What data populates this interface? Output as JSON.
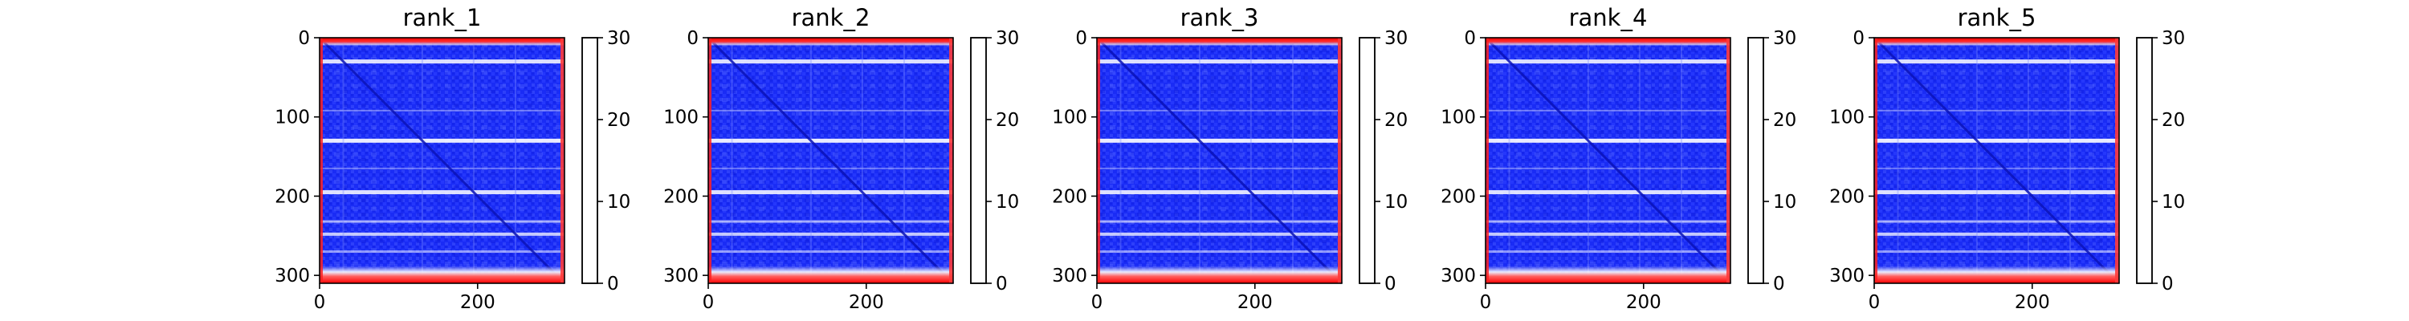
{
  "chart_data": [
    {
      "type": "heatmap",
      "title": "rank_1",
      "xlim": [
        0,
        310
      ],
      "ylim": [
        310,
        0
      ],
      "x_ticks": [
        0,
        200
      ],
      "x_tick_labels": [
        "0",
        "200"
      ],
      "y_ticks": [
        0,
        100,
        200,
        300
      ],
      "y_tick_labels": [
        "0",
        "100",
        "200",
        "300"
      ],
      "colorbar": {
        "range": [
          0,
          30
        ],
        "ticks": [
          0,
          10,
          20,
          30
        ],
        "tick_labels": [
          "0",
          "10",
          "20",
          "30"
        ],
        "colormap": [
          "#0000ff",
          "#ffffff",
          "#ff0000"
        ]
      },
      "matrix_size": 310,
      "grid": false
    },
    {
      "type": "heatmap",
      "title": "rank_2",
      "xlim": [
        0,
        310
      ],
      "ylim": [
        310,
        0
      ],
      "x_ticks": [
        0,
        200
      ],
      "x_tick_labels": [
        "0",
        "200"
      ],
      "y_ticks": [
        0,
        100,
        200,
        300
      ],
      "y_tick_labels": [
        "0",
        "100",
        "200",
        "300"
      ],
      "colorbar": {
        "range": [
          0,
          30
        ],
        "ticks": [
          0,
          10,
          20,
          30
        ],
        "tick_labels": [
          "0",
          "10",
          "20",
          "30"
        ],
        "colormap": [
          "#0000ff",
          "#ffffff",
          "#ff0000"
        ]
      },
      "matrix_size": 310,
      "grid": false
    },
    {
      "type": "heatmap",
      "title": "rank_3",
      "xlim": [
        0,
        310
      ],
      "ylim": [
        310,
        0
      ],
      "x_ticks": [
        0,
        200
      ],
      "x_tick_labels": [
        "0",
        "200"
      ],
      "y_ticks": [
        0,
        100,
        200,
        300
      ],
      "y_tick_labels": [
        "0",
        "100",
        "200",
        "300"
      ],
      "colorbar": {
        "range": [
          0,
          30
        ],
        "ticks": [
          0,
          10,
          20,
          30
        ],
        "tick_labels": [
          "0",
          "10",
          "20",
          "30"
        ],
        "colormap": [
          "#0000ff",
          "#ffffff",
          "#ff0000"
        ]
      },
      "matrix_size": 310,
      "grid": false
    },
    {
      "type": "heatmap",
      "title": "rank_4",
      "xlim": [
        0,
        310
      ],
      "ylim": [
        310,
        0
      ],
      "x_ticks": [
        0,
        200
      ],
      "x_tick_labels": [
        "0",
        "200"
      ],
      "y_ticks": [
        0,
        100,
        200,
        300
      ],
      "y_tick_labels": [
        "0",
        "100",
        "200",
        "300"
      ],
      "colorbar": {
        "range": [
          0,
          30
        ],
        "ticks": [
          0,
          10,
          20,
          30
        ],
        "tick_labels": [
          "0",
          "10",
          "20",
          "30"
        ],
        "colormap": [
          "#0000ff",
          "#ffffff",
          "#ff0000"
        ]
      },
      "matrix_size": 310,
      "grid": false
    },
    {
      "type": "heatmap",
      "title": "rank_5",
      "xlim": [
        0,
        310
      ],
      "ylim": [
        310,
        0
      ],
      "x_ticks": [
        0,
        200
      ],
      "x_tick_labels": [
        "0",
        "200"
      ],
      "y_ticks": [
        0,
        100,
        200,
        300
      ],
      "y_tick_labels": [
        "0",
        "100",
        "200",
        "300"
      ],
      "colorbar": {
        "range": [
          0,
          30
        ],
        "ticks": [
          0,
          10,
          20,
          30
        ],
        "tick_labels": [
          "0",
          "10",
          "20",
          "30"
        ],
        "colormap": [
          "#0000ff",
          "#ffffff",
          "#ff0000"
        ]
      },
      "matrix_size": 310,
      "grid": false
    }
  ]
}
